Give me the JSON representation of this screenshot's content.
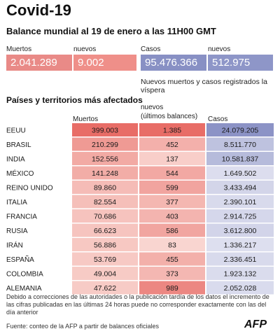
{
  "title": "Covid-19",
  "subtitle": "Balance mundial al 19 de enero a las 11H00 GMT",
  "summary": {
    "deaths_label": "Muertos",
    "deaths_value": "2.041.289",
    "new_deaths_label": "nuevos",
    "new_deaths_value": "9.002",
    "cases_label": "Casos",
    "cases_value": "95.476.366",
    "new_cases_label": "nuevos",
    "new_cases_value": "512.975",
    "note": "Nuevos muertos y casos registrados la víspera"
  },
  "section_title": "Países y territorios más afectados",
  "columns": {
    "deaths": "Muertos",
    "new_line1": "nuevos",
    "new_line2": "(últimos balances)",
    "cases": "Casos"
  },
  "colors": {
    "deaths_box": "#e98a87",
    "new_deaths_box": "#ef8f89",
    "cases_box": "#8890c4",
    "new_cases_box": "#8e96c8",
    "red_scale": [
      "#fbe3de",
      "#e86d67"
    ],
    "blue_scale": [
      "#e8e9f4",
      "#8c93c6"
    ]
  },
  "chart_data": {
    "type": "table",
    "title": "Países y territorios más afectados",
    "columns": [
      "Muertos",
      "nuevos (últimos balances)",
      "Casos"
    ],
    "rows": [
      {
        "country": "EEUU",
        "deaths": 399003,
        "new": 1385,
        "cases": 24079205,
        "deaths_label": "399.003",
        "new_label": "1.385",
        "cases_label": "24.079.205"
      },
      {
        "country": "BRASIL",
        "deaths": 210299,
        "new": 452,
        "cases": 8511770,
        "deaths_label": "210.299",
        "new_label": "452",
        "cases_label": "8.511.770"
      },
      {
        "country": "INDIA",
        "deaths": 152556,
        "new": 137,
        "cases": 10581837,
        "deaths_label": "152.556",
        "new_label": "137",
        "cases_label": "10.581.837"
      },
      {
        "country": "MÉXICO",
        "deaths": 141248,
        "new": 544,
        "cases": 1649502,
        "deaths_label": "141.248",
        "new_label": "544",
        "cases_label": "1.649.502"
      },
      {
        "country": "REINO UNIDO",
        "deaths": 89860,
        "new": 599,
        "cases": 3433494,
        "deaths_label": "89.860",
        "new_label": "599",
        "cases_label": "3.433.494"
      },
      {
        "country": "ITALIA",
        "deaths": 82554,
        "new": 377,
        "cases": 2390101,
        "deaths_label": "82.554",
        "new_label": "377",
        "cases_label": "2.390.101"
      },
      {
        "country": "FRANCIA",
        "deaths": 70686,
        "new": 403,
        "cases": 2914725,
        "deaths_label": "70.686",
        "new_label": "403",
        "cases_label": "2.914.725"
      },
      {
        "country": "RUSIA",
        "deaths": 66623,
        "new": 586,
        "cases": 3612800,
        "deaths_label": "66.623",
        "new_label": "586",
        "cases_label": "3.612.800"
      },
      {
        "country": "IRÁN",
        "deaths": 56886,
        "new": 83,
        "cases": 1336217,
        "deaths_label": "56.886",
        "new_label": "83",
        "cases_label": "1.336.217"
      },
      {
        "country": "ESPAÑA",
        "deaths": 53769,
        "new": 455,
        "cases": 2336451,
        "deaths_label": "53.769",
        "new_label": "455",
        "cases_label": "2.336.451"
      },
      {
        "country": "COLOMBIA",
        "deaths": 49004,
        "new": 373,
        "cases": 1923132,
        "deaths_label": "49.004",
        "new_label": "373",
        "cases_label": "1.923.132"
      },
      {
        "country": "ALEMANIA",
        "deaths": 47622,
        "new": 989,
        "cases": 2052028,
        "deaths_label": "47.622",
        "new_label": "989",
        "cases_label": "2.052.028"
      }
    ]
  },
  "footnote": "Debido a correcciones de las autoridades o la publicación tardía de los datos  el incremento de las cifras publicadas en las últimas 24 horas puede no corresponder exactamente con las del día anterior",
  "source": "Fuente: conteo de la AFP a partir de balances oficiales",
  "logo_text": "AFP",
  "logo_icon": "afp-logo"
}
